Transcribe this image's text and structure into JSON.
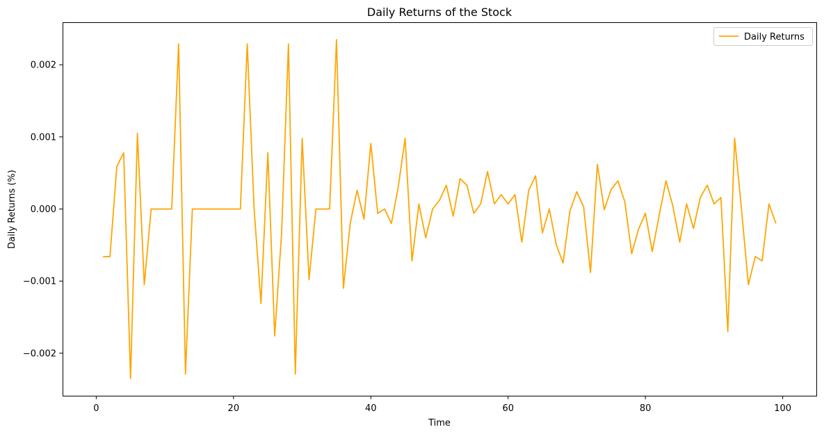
{
  "chart_data": {
    "type": "line",
    "title": "Daily Returns of the Stock",
    "xlabel": "Time",
    "ylabel": "Daily Returns (%)",
    "xlim": [
      -4.9,
      104.9
    ],
    "ylim": [
      -0.00259,
      0.00259
    ],
    "xticks": [
      0,
      20,
      40,
      60,
      80,
      100
    ],
    "xtick_labels": [
      "0",
      "20",
      "40",
      "60",
      "80",
      "100"
    ],
    "yticks": [
      -0.002,
      -0.001,
      0.0,
      0.001,
      0.002
    ],
    "ytick_labels": [
      "−0.002",
      "−0.001",
      "0.000",
      "0.001",
      "0.002"
    ],
    "grid": false,
    "legend_position": "top-right",
    "series": [
      {
        "name": "Daily Returns",
        "color": "#ffa500",
        "x": [
          1,
          2,
          3,
          4,
          5,
          6,
          7,
          8,
          9,
          10,
          11,
          12,
          13,
          14,
          15,
          16,
          17,
          18,
          19,
          20,
          21,
          22,
          23,
          24,
          25,
          26,
          27,
          28,
          29,
          30,
          31,
          32,
          33,
          34,
          35,
          36,
          37,
          38,
          39,
          40,
          41,
          42,
          43,
          44,
          45,
          46,
          47,
          48,
          49,
          50,
          51,
          52,
          53,
          54,
          55,
          56,
          57,
          58,
          59,
          60,
          61,
          62,
          63,
          64,
          65,
          66,
          67,
          68,
          69,
          70,
          71,
          72,
          73,
          74,
          75,
          76,
          77,
          78,
          79,
          80,
          81,
          82,
          83,
          84,
          85,
          86,
          87,
          88,
          89,
          90,
          91,
          92,
          93,
          94,
          95,
          96,
          97,
          98,
          99
        ],
        "values": [
          -0.00066,
          -0.00066,
          0.00059,
          0.00078,
          -0.00235,
          0.00105,
          -0.00105,
          0.0,
          0.0,
          0.0,
          0.0,
          0.00229,
          -0.00229,
          0.0,
          0.0,
          0.0,
          0.0,
          0.0,
          0.0,
          0.0,
          0.0,
          0.00229,
          0.0,
          -0.00131,
          0.00078,
          -0.00176,
          -0.00034,
          0.00229,
          -0.00229,
          0.00098,
          -0.00098,
          0.0,
          0.0,
          0.0,
          0.00235,
          -0.0011,
          -0.0002,
          0.00026,
          -0.00014,
          0.00091,
          -6e-05,
          0.0,
          -0.0002,
          0.00031,
          0.00098,
          -0.00072,
          7e-05,
          -0.0004,
          0.0,
          0.00012,
          0.00033,
          -0.0001,
          0.00042,
          0.00033,
          -6e-05,
          7e-05,
          0.00052,
          7e-05,
          0.0002,
          7e-05,
          0.0002,
          -0.00046,
          0.00026,
          0.00046,
          -0.00033,
          0.0,
          -0.00049,
          -0.00075,
          -3e-05,
          0.00024,
          3e-05,
          -0.00088,
          0.00062,
          -1e-05,
          0.00027,
          0.00039,
          0.0001,
          -0.00062,
          -0.00028,
          -6e-05,
          -0.00059,
          -9e-05,
          0.00039,
          4e-05,
          -0.00046,
          7e-05,
          -0.00027,
          0.00016,
          0.00033,
          7e-05,
          0.00016,
          -0.0017,
          0.00098,
          -1e-05,
          -0.00105,
          -0.00066,
          -0.00072,
          7e-05,
          -0.0002
        ]
      }
    ]
  }
}
